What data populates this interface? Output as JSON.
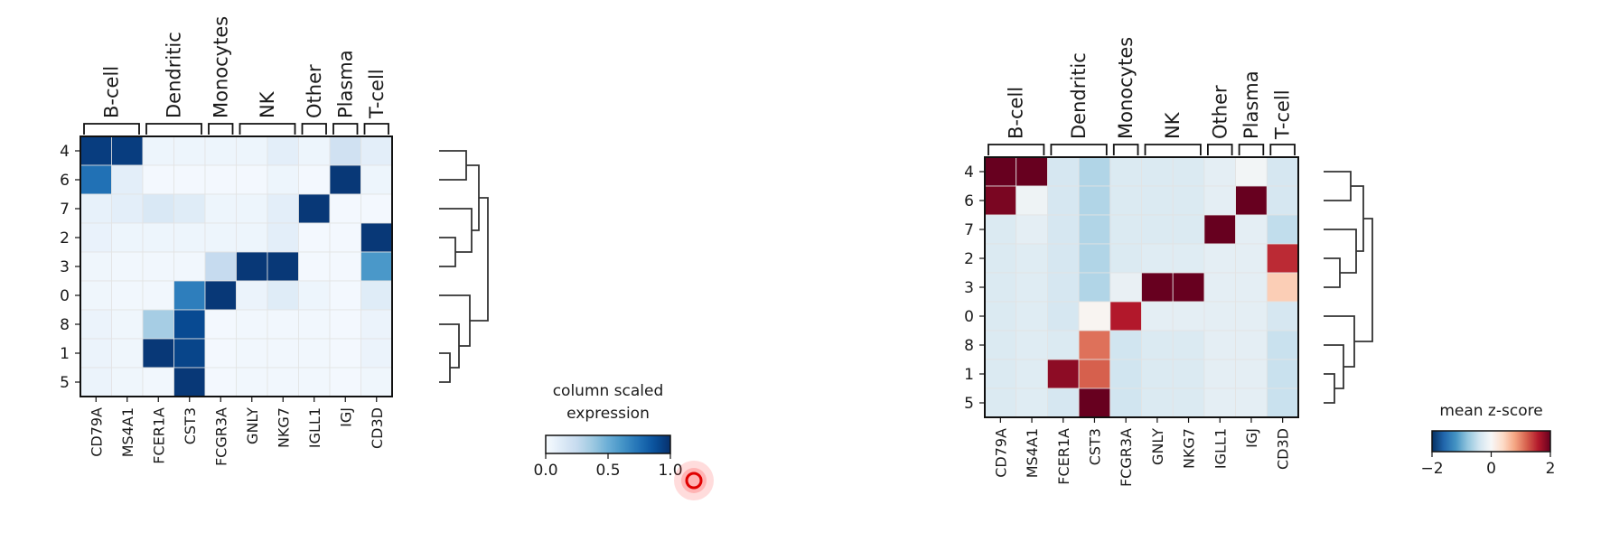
{
  "chart_data": [
    {
      "type": "heatmap",
      "title": "",
      "rows": [
        "4",
        "6",
        "7",
        "2",
        "3",
        "0",
        "8",
        "1",
        "5"
      ],
      "columns": [
        "CD79A",
        "MS4A1",
        "FCER1A",
        "CST3",
        "FCGR3A",
        "GNLY",
        "NKG7",
        "IGLL1",
        "IGJ",
        "CD3D"
      ],
      "groups": [
        {
          "label": "B-cell",
          "start": 0,
          "end": 1
        },
        {
          "label": "Dendritic",
          "start": 2,
          "end": 3
        },
        {
          "label": "Monocytes",
          "start": 4,
          "end": 4
        },
        {
          "label": "NK",
          "start": 5,
          "end": 6
        },
        {
          "label": "Other",
          "start": 7,
          "end": 7
        },
        {
          "label": "Plasma",
          "start": 8,
          "end": 8
        },
        {
          "label": "T-cell",
          "start": 9,
          "end": 9
        }
      ],
      "values": [
        [
          0.95,
          0.95,
          0.05,
          0.05,
          0.05,
          0.05,
          0.1,
          0.05,
          0.2,
          0.1
        ],
        [
          0.75,
          0.1,
          0.02,
          0.02,
          0.02,
          0.02,
          0.05,
          0.02,
          0.97,
          0.05
        ],
        [
          0.08,
          0.1,
          0.15,
          0.12,
          0.05,
          0.05,
          0.1,
          0.97,
          0.02,
          0.02
        ],
        [
          0.07,
          0.05,
          0.05,
          0.05,
          0.05,
          0.05,
          0.1,
          0.02,
          0.02,
          0.97
        ],
        [
          0.04,
          0.03,
          0.03,
          0.03,
          0.25,
          0.97,
          0.97,
          0.02,
          0.02,
          0.6
        ],
        [
          0.04,
          0.03,
          0.03,
          0.7,
          0.97,
          0.06,
          0.12,
          0.05,
          0.02,
          0.12
        ],
        [
          0.06,
          0.04,
          0.35,
          0.9,
          0.02,
          0.03,
          0.03,
          0.03,
          0.02,
          0.06
        ],
        [
          0.06,
          0.04,
          0.97,
          0.92,
          0.02,
          0.03,
          0.03,
          0.03,
          0.02,
          0.06
        ],
        [
          0.06,
          0.04,
          0.03,
          0.97,
          0.02,
          0.03,
          0.03,
          0.03,
          0.02,
          0.04
        ]
      ],
      "colormap": "Blues",
      "colorbar": {
        "label": "column scaled\nexpression",
        "ticks": [
          "0.0",
          "0.5",
          "1.0"
        ],
        "range": [
          0,
          1
        ]
      },
      "dendrogram": "right"
    },
    {
      "type": "heatmap",
      "title": "",
      "rows": [
        "4",
        "6",
        "7",
        "2",
        "3",
        "0",
        "8",
        "1",
        "5"
      ],
      "columns": [
        "CD79A",
        "MS4A1",
        "FCER1A",
        "CST3",
        "FCGR3A",
        "GNLY",
        "NKG7",
        "IGLL1",
        "IGJ",
        "CD3D"
      ],
      "groups": [
        {
          "label": "B-cell",
          "start": 0,
          "end": 1
        },
        {
          "label": "Dendritic",
          "start": 2,
          "end": 3
        },
        {
          "label": "Monocytes",
          "start": 4,
          "end": 4
        },
        {
          "label": "NK",
          "start": 5,
          "end": 6
        },
        {
          "label": "Other",
          "start": 7,
          "end": 7
        },
        {
          "label": "Plasma",
          "start": 8,
          "end": 8
        },
        {
          "label": "T-cell",
          "start": 9,
          "end": 9
        }
      ],
      "values": [
        [
          2.0,
          2.0,
          -0.35,
          -0.6,
          -0.3,
          -0.3,
          -0.3,
          -0.2,
          -0.05,
          -0.35
        ],
        [
          1.9,
          -0.1,
          -0.35,
          -0.6,
          -0.3,
          -0.3,
          -0.3,
          -0.2,
          2.0,
          -0.35
        ],
        [
          -0.3,
          -0.2,
          -0.35,
          -0.6,
          -0.3,
          -0.3,
          -0.3,
          2.0,
          -0.2,
          -0.5
        ],
        [
          -0.3,
          -0.25,
          -0.35,
          -0.6,
          -0.3,
          -0.25,
          -0.25,
          -0.2,
          -0.2,
          1.5
        ],
        [
          -0.3,
          -0.25,
          -0.35,
          -0.6,
          -0.15,
          2.0,
          2.0,
          -0.2,
          -0.2,
          0.5
        ],
        [
          -0.3,
          -0.25,
          -0.35,
          0.05,
          1.6,
          -0.2,
          -0.2,
          -0.2,
          -0.2,
          -0.35
        ],
        [
          -0.3,
          -0.25,
          -0.3,
          1.1,
          -0.4,
          -0.3,
          -0.3,
          -0.2,
          -0.2,
          -0.45
        ],
        [
          -0.3,
          -0.25,
          1.8,
          1.2,
          -0.4,
          -0.3,
          -0.3,
          -0.2,
          -0.2,
          -0.45
        ],
        [
          -0.3,
          -0.25,
          -0.35,
          2.0,
          -0.4,
          -0.3,
          -0.3,
          -0.2,
          -0.2,
          -0.45
        ]
      ],
      "colormap": "RdBu_r",
      "colorbar": {
        "label": "mean z-score",
        "ticks": [
          "−2",
          "0",
          "2"
        ],
        "range": [
          -2,
          2
        ]
      },
      "dendrogram": "right"
    }
  ]
}
